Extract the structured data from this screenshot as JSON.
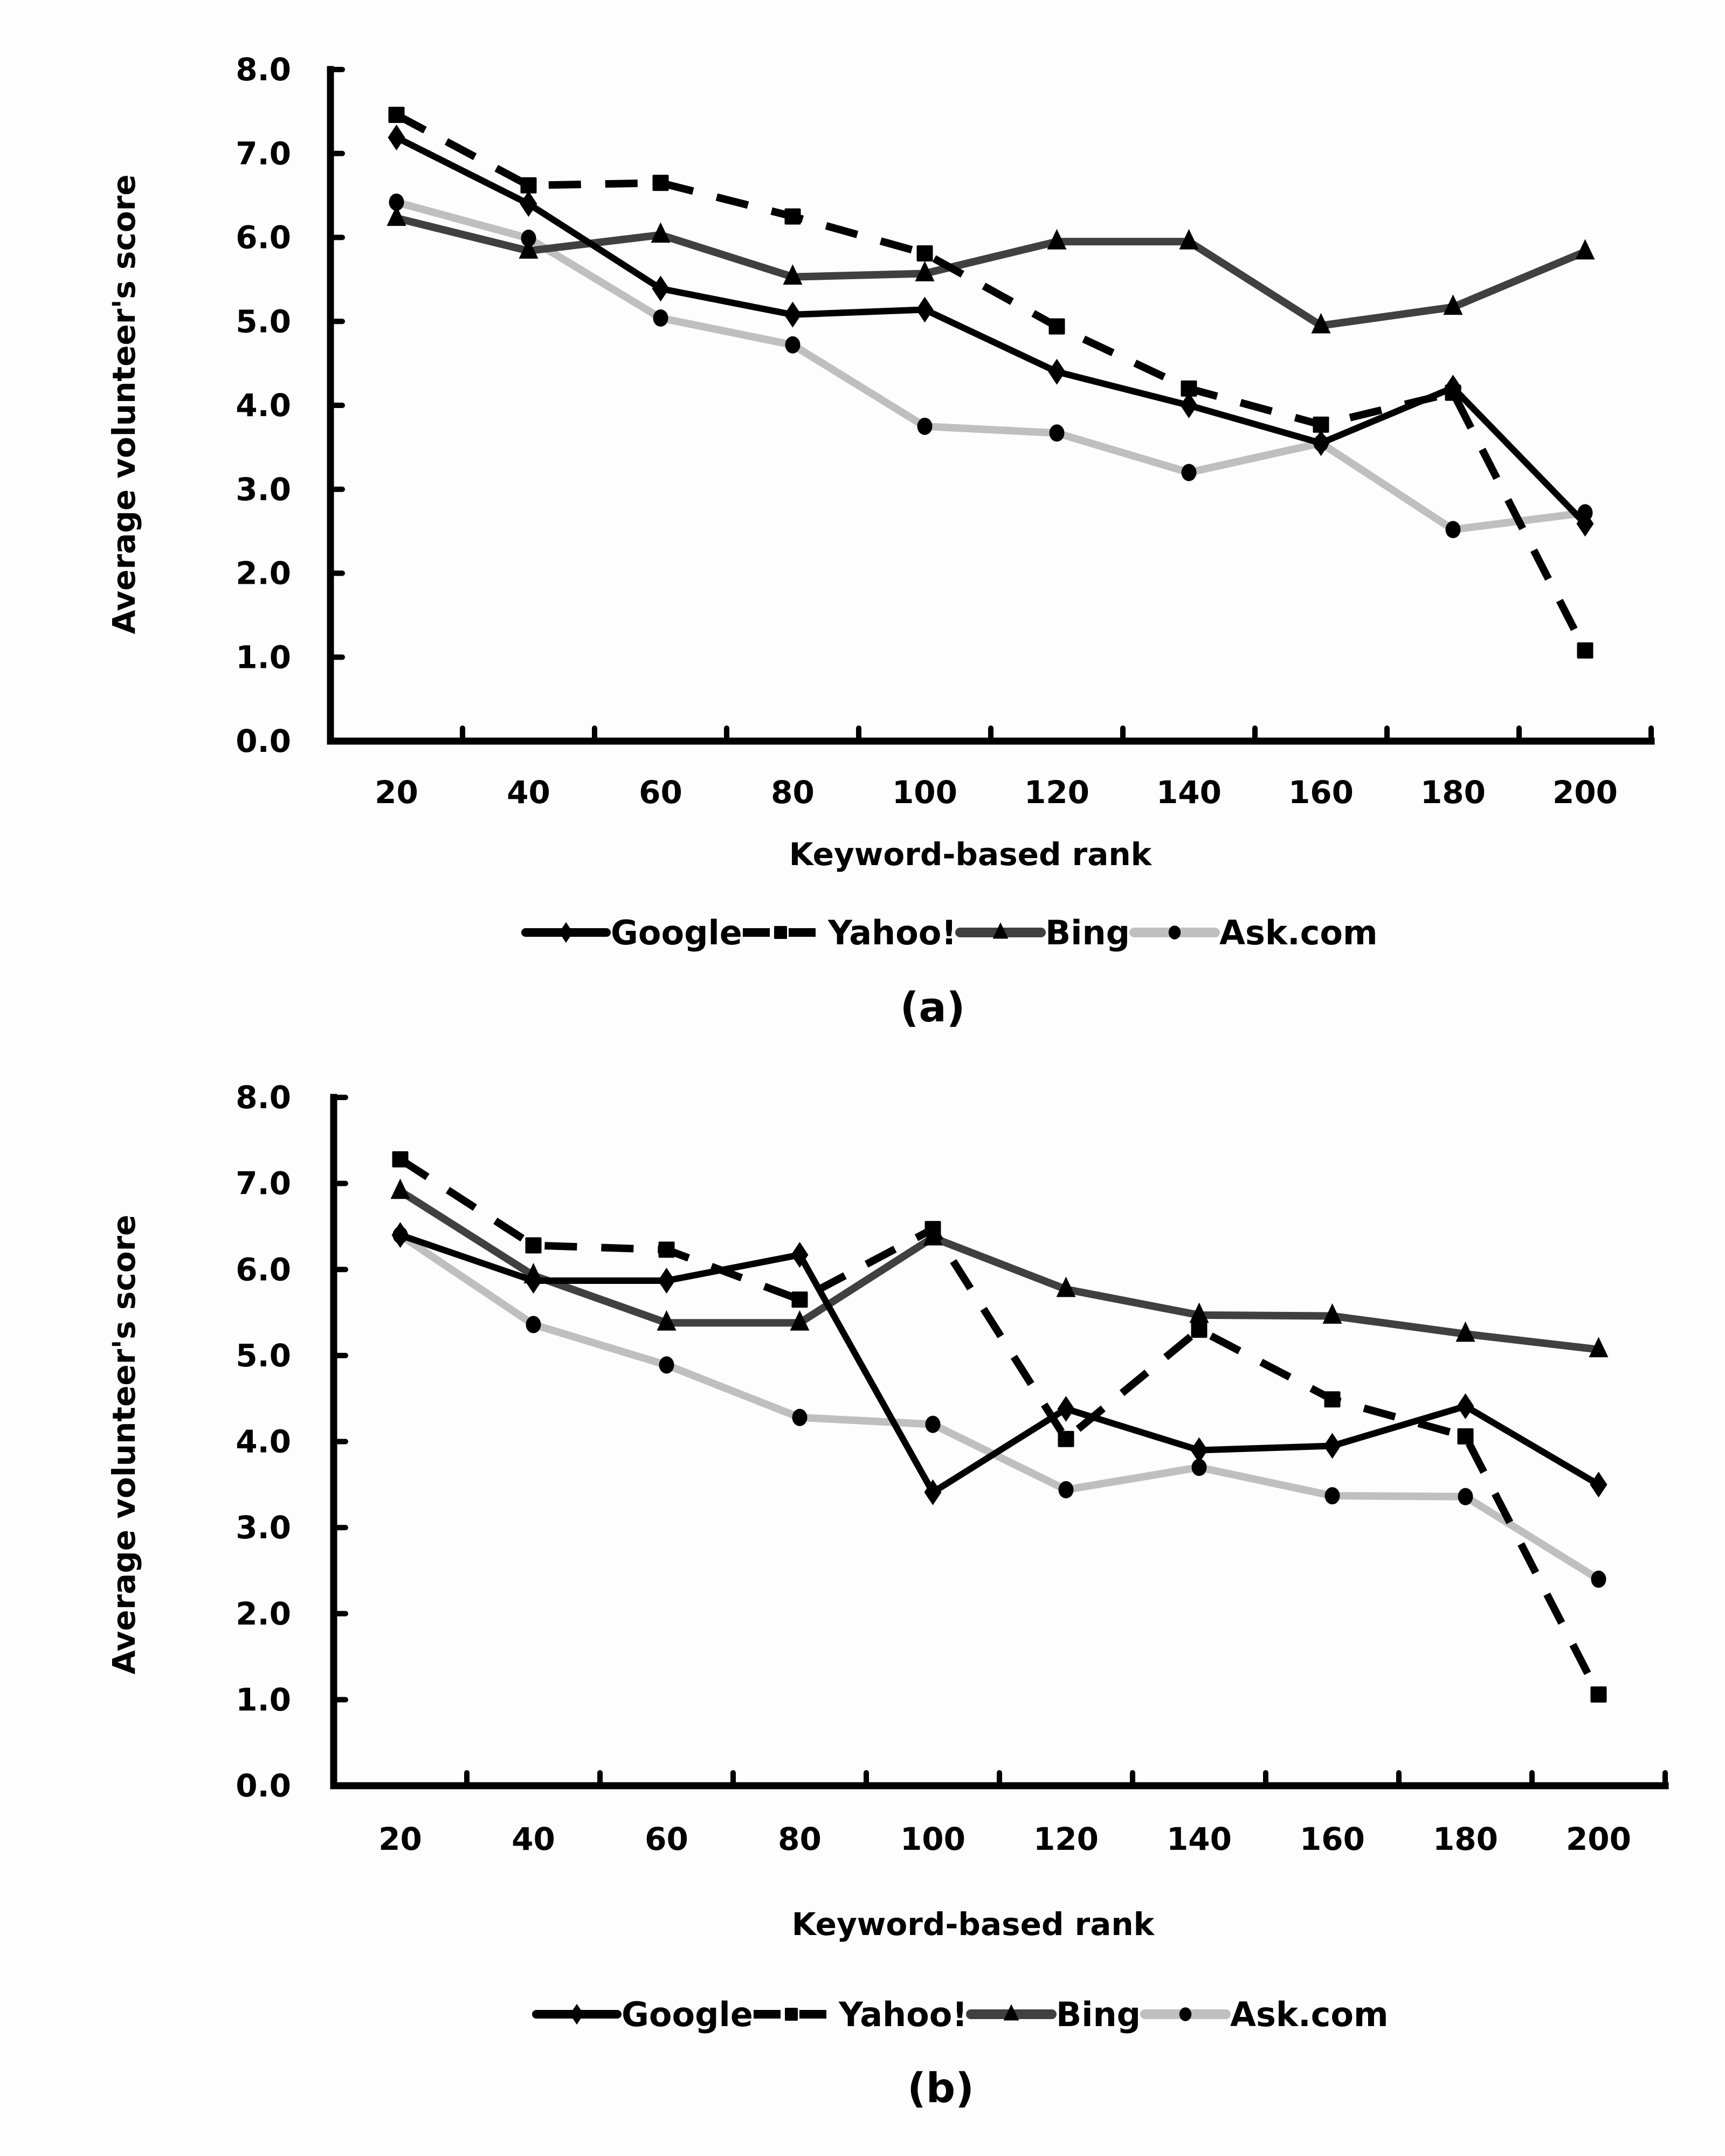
{
  "chart_data": [
    {
      "type": "line",
      "panel_label": "(a)",
      "title": "",
      "xlabel": "Keyword-based rank",
      "ylabel": "Average volunteer's score",
      "categories": [
        "20",
        "40",
        "60",
        "80",
        "100",
        "120",
        "140",
        "160",
        "180",
        "200"
      ],
      "ylim": [
        0,
        8
      ],
      "yticks": [
        "0.0",
        "1.0",
        "2.0",
        "3.0",
        "4.0",
        "5.0",
        "6.0",
        "7.0",
        "8.0"
      ],
      "grid": false,
      "legend_position": "bottom",
      "series": [
        {
          "name": "Google",
          "color": "#000000",
          "dash": "solid",
          "marker": "diamond",
          "values": [
            7.19,
            6.4,
            5.39,
            5.08,
            5.14,
            4.4,
            4.0,
            3.55,
            4.21,
            2.59
          ]
        },
        {
          "name": "Yahoo!",
          "color": "#000000",
          "dash": "dashed",
          "marker": "square",
          "values": [
            7.46,
            6.62,
            6.65,
            6.25,
            5.81,
            4.94,
            4.2,
            3.77,
            4.15,
            1.08
          ]
        },
        {
          "name": "Bing",
          "color": "#404040",
          "dash": "solid",
          "marker": "triangle",
          "values": [
            6.23,
            5.84,
            6.03,
            5.53,
            5.57,
            5.95,
            5.95,
            4.95,
            5.17,
            5.83
          ]
        },
        {
          "name": "Ask.com",
          "color": "#bfbfbf",
          "dash": "solid",
          "marker": "circle",
          "values": [
            6.42,
            5.99,
            5.04,
            4.72,
            3.75,
            3.67,
            3.2,
            3.55,
            2.52,
            2.72
          ]
        }
      ]
    },
    {
      "type": "line",
      "panel_label": "(b)",
      "title": "",
      "xlabel": "Keyword-based rank",
      "ylabel": "Average volunteer's score",
      "categories": [
        "20",
        "40",
        "60",
        "80",
        "100",
        "120",
        "140",
        "160",
        "180",
        "200"
      ],
      "ylim": [
        0,
        8
      ],
      "yticks": [
        "0.0",
        "1.0",
        "2.0",
        "3.0",
        "4.0",
        "5.0",
        "6.0",
        "7.0",
        "8.0"
      ],
      "grid": false,
      "legend_position": "bottom",
      "series": [
        {
          "name": "Google",
          "color": "#000000",
          "dash": "solid",
          "marker": "diamond",
          "values": [
            6.4,
            5.87,
            5.87,
            6.17,
            3.41,
            4.38,
            3.9,
            3.95,
            4.41,
            3.5
          ]
        },
        {
          "name": "Yahoo!",
          "color": "#000000",
          "dash": "dashed",
          "marker": "square",
          "values": [
            7.28,
            6.28,
            6.23,
            5.65,
            6.47,
            4.03,
            5.3,
            4.49,
            4.06,
            1.06
          ]
        },
        {
          "name": "Bing",
          "color": "#404040",
          "dash": "solid",
          "marker": "triangle",
          "values": [
            6.91,
            5.93,
            5.38,
            5.38,
            6.37,
            5.77,
            5.47,
            5.46,
            5.25,
            5.07
          ]
        },
        {
          "name": "Ask.com",
          "color": "#bfbfbf",
          "dash": "solid",
          "marker": "circle",
          "values": [
            6.4,
            5.36,
            4.89,
            4.28,
            4.2,
            3.44,
            3.7,
            3.37,
            3.36,
            2.4
          ]
        }
      ]
    }
  ]
}
